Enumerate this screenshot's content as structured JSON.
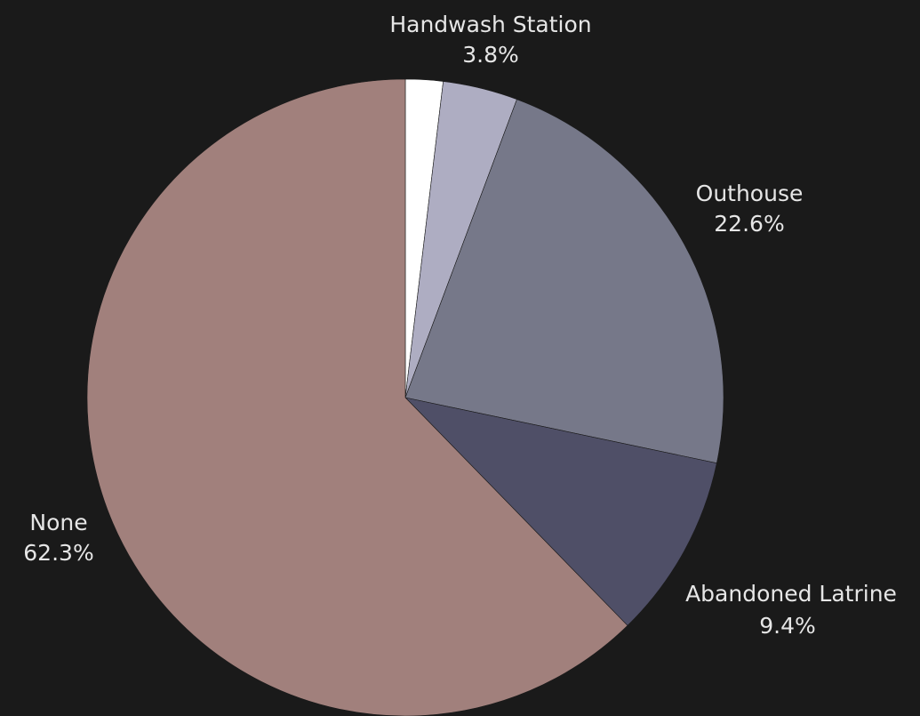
{
  "chart_data": {
    "type": "pie",
    "title": "",
    "start_angle": "12 o'clock",
    "direction": "clockwise",
    "legend": "none",
    "slices": [
      {
        "label": "",
        "percent_label": "",
        "value": 1.9,
        "color": "#ffffff"
      },
      {
        "label": "Handwash Station",
        "percent_label": "3.8%",
        "value": 3.8,
        "color": "#aeadc2"
      },
      {
        "label": "Outhouse",
        "percent_label": "22.6%",
        "value": 22.6,
        "color": "#767889"
      },
      {
        "label": "Abandoned Latrine",
        "percent_label": "9.4%",
        "value": 9.4,
        "color": "#4f4f67"
      },
      {
        "label": "None",
        "percent_label": "62.3%",
        "value": 62.3,
        "color": "#a1807c"
      }
    ]
  }
}
